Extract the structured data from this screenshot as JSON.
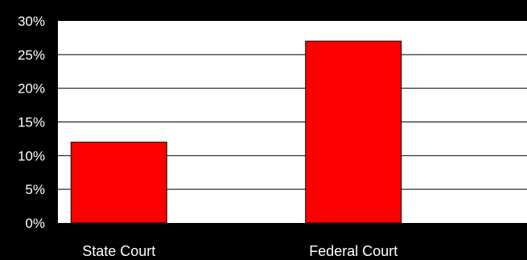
{
  "chart_data": {
    "type": "bar",
    "categories": [
      "State Court",
      "Federal Court"
    ],
    "values": [
      12,
      27
    ],
    "y_tick_labels": [
      "0%",
      "5%",
      "10%",
      "15%",
      "20%",
      "25%",
      "30%"
    ],
    "y_ticks": [
      0,
      5,
      10,
      15,
      20,
      25,
      30
    ],
    "ylim": [
      0,
      30
    ],
    "grid": true,
    "legend": "none",
    "colors": {
      "background": "#000000",
      "plot_area": "#ffffff",
      "bar": "#ff0000",
      "text": "#ffffff"
    }
  }
}
